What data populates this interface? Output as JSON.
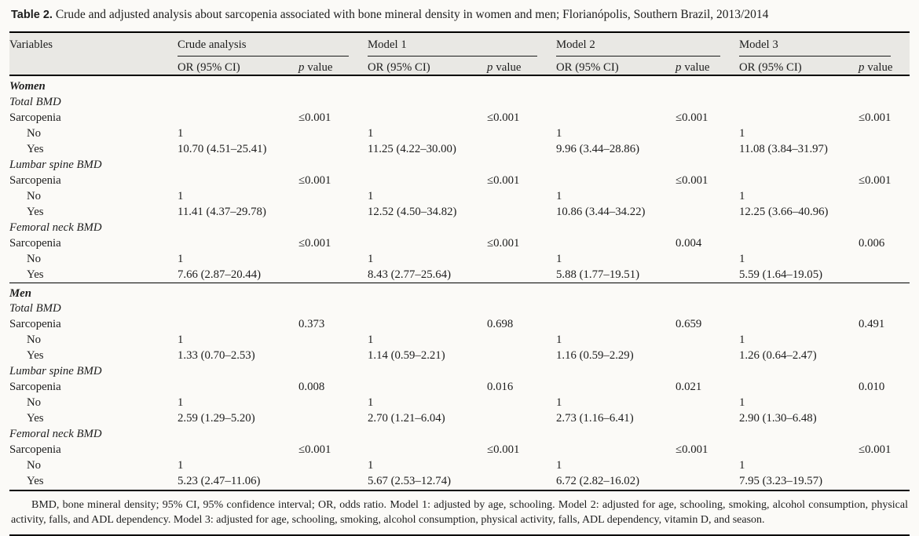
{
  "title": {
    "label": "Table 2.",
    "text": "Crude and adjusted analysis about sarcopenia associated with bone mineral density in women and men; Florianópolis, Southern Brazil, 2013/2014"
  },
  "table": {
    "variables_header": "Variables",
    "groups": [
      {
        "name": "Crude analysis",
        "or_header": "OR (95% CI)",
        "p_label": "p",
        "value_label": "value"
      },
      {
        "name": "Model 1",
        "or_header": "OR (95% CI)",
        "p_label": "p",
        "value_label": "value"
      },
      {
        "name": "Model 2",
        "or_header": "OR (95% CI)",
        "p_label": "p",
        "value_label": "value"
      },
      {
        "name": "Model 3",
        "or_header": "OR (95% CI)",
        "p_label": "p",
        "value_label": "value"
      }
    ],
    "row_labels": {
      "sarcopenia": "Sarcopenia",
      "no": "No",
      "yes": "Yes"
    },
    "sections": [
      {
        "name": "Women",
        "subsections": [
          {
            "name": "Total BMD",
            "p_values": [
              "≤0.001",
              "≤0.001",
              "≤0.001",
              "≤0.001"
            ],
            "no_values": [
              "1",
              "1",
              "1",
              "1"
            ],
            "yes_values": [
              "10.70 (4.51–25.41)",
              "11.25 (4.22–30.00)",
              "9.96 (3.44–28.86)",
              "11.08 (3.84–31.97)"
            ]
          },
          {
            "name": "Lumbar spine BMD",
            "p_values": [
              "≤0.001",
              "≤0.001",
              "≤0.001",
              "≤0.001"
            ],
            "no_values": [
              "1",
              "1",
              "1",
              "1"
            ],
            "yes_values": [
              "11.41 (4.37–29.78)",
              "12.52 (4.50–34.82)",
              "10.86 (3.44–34.22)",
              "12.25 (3.66–40.96)"
            ]
          },
          {
            "name": "Femoral neck BMD",
            "p_values": [
              "≤0.001",
              "≤0.001",
              "0.004",
              "0.006"
            ],
            "no_values": [
              "1",
              "1",
              "1",
              "1"
            ],
            "yes_values": [
              "7.66 (2.87–20.44)",
              "8.43 (2.77–25.64)",
              "5.88 (1.77–19.51)",
              "5.59 (1.64–19.05)"
            ]
          }
        ]
      },
      {
        "name": "Men",
        "subsections": [
          {
            "name": "Total BMD",
            "p_values": [
              "0.373",
              "0.698",
              "0.659",
              "0.491"
            ],
            "no_values": [
              "1",
              "1",
              "1",
              "1"
            ],
            "yes_values": [
              "1.33 (0.70–2.53)",
              "1.14 (0.59–2.21)",
              "1.16 (0.59–2.29)",
              "1.26 (0.64–2.47)"
            ]
          },
          {
            "name": "Lumbar spine BMD",
            "p_values": [
              "0.008",
              "0.016",
              "0.021",
              "0.010"
            ],
            "no_values": [
              "1",
              "1",
              "1",
              "1"
            ],
            "yes_values": [
              "2.59 (1.29–5.20)",
              "2.70 (1.21–6.04)",
              "2.73 (1.16–6.41)",
              "2.90 (1.30–6.48)"
            ]
          },
          {
            "name": "Femoral neck BMD",
            "p_values": [
              "≤0.001",
              "≤0.001",
              "≤0.001",
              "≤0.001"
            ],
            "no_values": [
              "1",
              "1",
              "1",
              "1"
            ],
            "yes_values": [
              "5.23 (2.47–11.06)",
              "5.67 (2.53–12.74)",
              "6.72 (2.82–16.02)",
              "7.95 (3.23–19.57)"
            ]
          }
        ]
      }
    ]
  },
  "footnote": "BMD, bone mineral density; 95% CI, 95% confidence interval; OR, odds ratio. Model 1: adjusted by age, schooling. Model 2: adjusted for age, schooling, smoking, alcohol consumption, physical activity, falls, and ADL dependency. Model 3: adjusted for age, schooling, smoking, alcohol consumption, physical activity, falls, ADL dependency, vitamin D, and season."
}
